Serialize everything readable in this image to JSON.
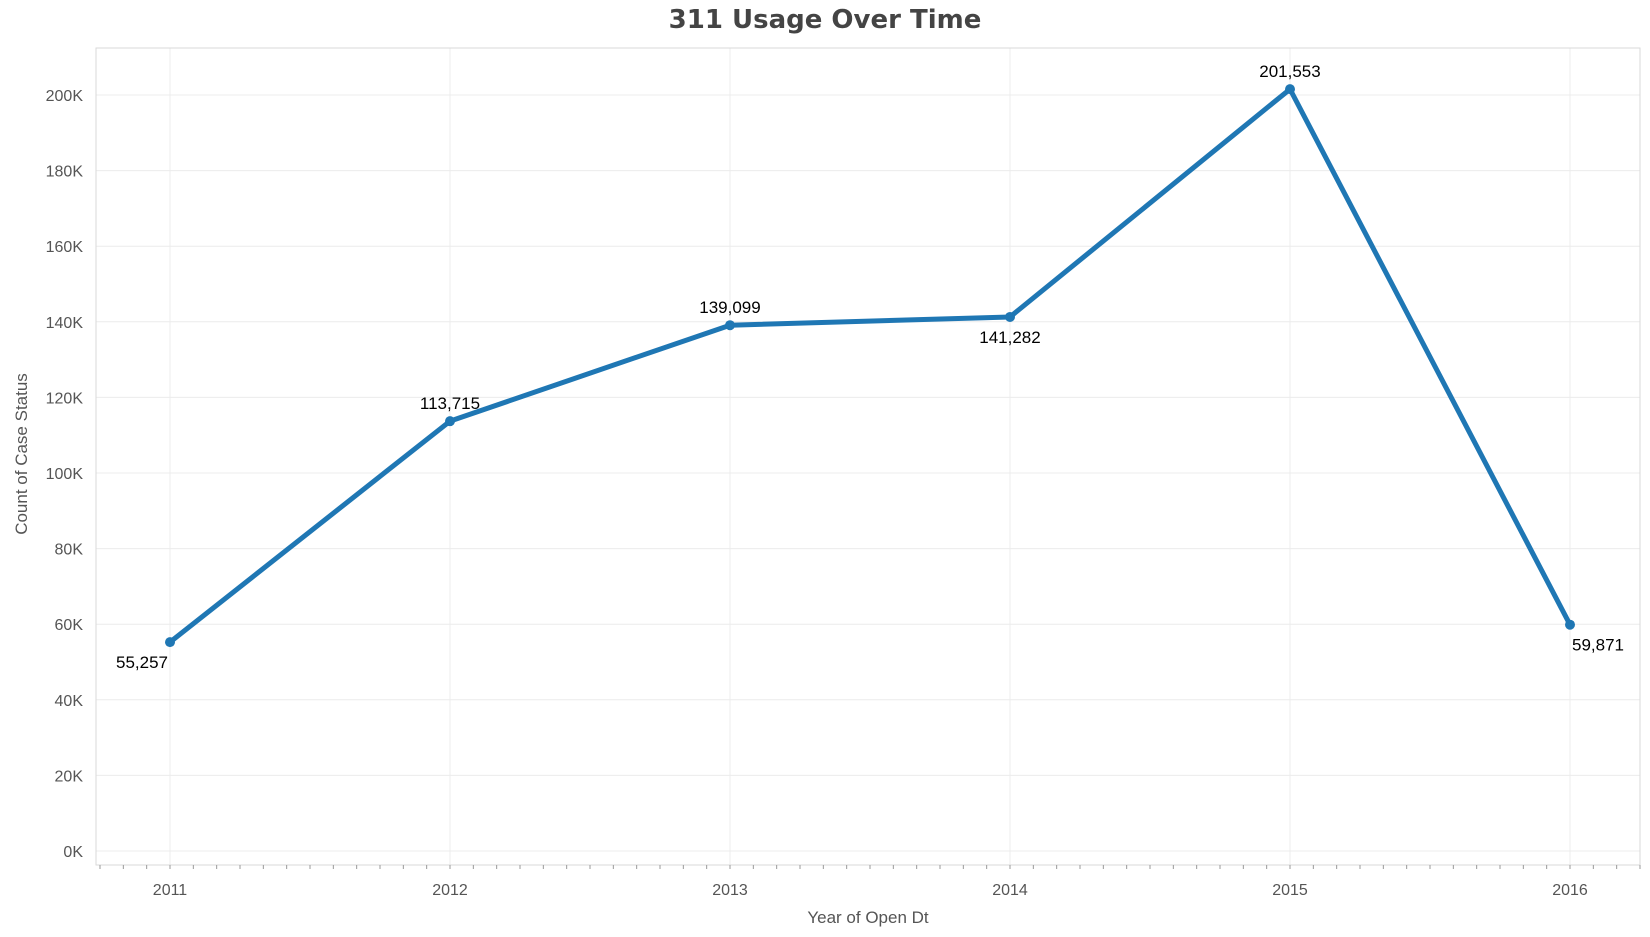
{
  "chart_data": {
    "type": "line",
    "title": "311 Usage Over Time",
    "xlabel": "Year of Open Dt",
    "ylabel": "Count of Case Status",
    "x": [
      "2011",
      "2012",
      "2013",
      "2014",
      "2015",
      "2016"
    ],
    "series": [
      {
        "values": [
          55257,
          113715,
          139099,
          141282,
          201553,
          59871
        ],
        "labels": [
          "55,257",
          "113,715",
          "139,099",
          "141,282",
          "201,553",
          "59,871"
        ],
        "color": "#1f77b4"
      }
    ],
    "yticks": [
      0,
      20000,
      40000,
      60000,
      80000,
      100000,
      120000,
      140000,
      160000,
      180000,
      200000
    ],
    "ytick_labels": [
      "0K",
      "20K",
      "40K",
      "60K",
      "80K",
      "100K",
      "120K",
      "140K",
      "160K",
      "180K",
      "200K"
    ],
    "ylim": [
      0,
      212000
    ],
    "grid": true,
    "legend": "none"
  }
}
